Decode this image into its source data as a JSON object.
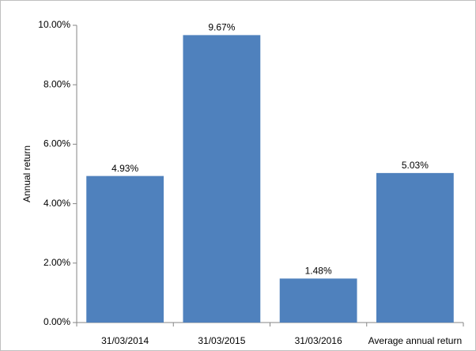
{
  "chart_data": {
    "type": "bar",
    "y_label": "Annual return",
    "categories": [
      "31/03/2014",
      "31/03/2015",
      "31/03/2016",
      "Average annual return"
    ],
    "values": [
      4.93,
      9.67,
      1.48,
      5.03
    ],
    "value_labels": [
      "4.93%",
      "9.67%",
      "1.48%",
      "5.03%"
    ],
    "color": "#4f81bd",
    "ylim": [
      0,
      10
    ],
    "yticks": [
      {
        "value": 0,
        "label": "0.00%"
      },
      {
        "value": 2,
        "label": "2.00%"
      },
      {
        "value": 4,
        "label": "4.00%"
      },
      {
        "value": 6,
        "label": "6.00%"
      },
      {
        "value": 8,
        "label": "8.00%"
      },
      {
        "value": 10,
        "label": "10.00%"
      }
    ],
    "grid": false
  }
}
